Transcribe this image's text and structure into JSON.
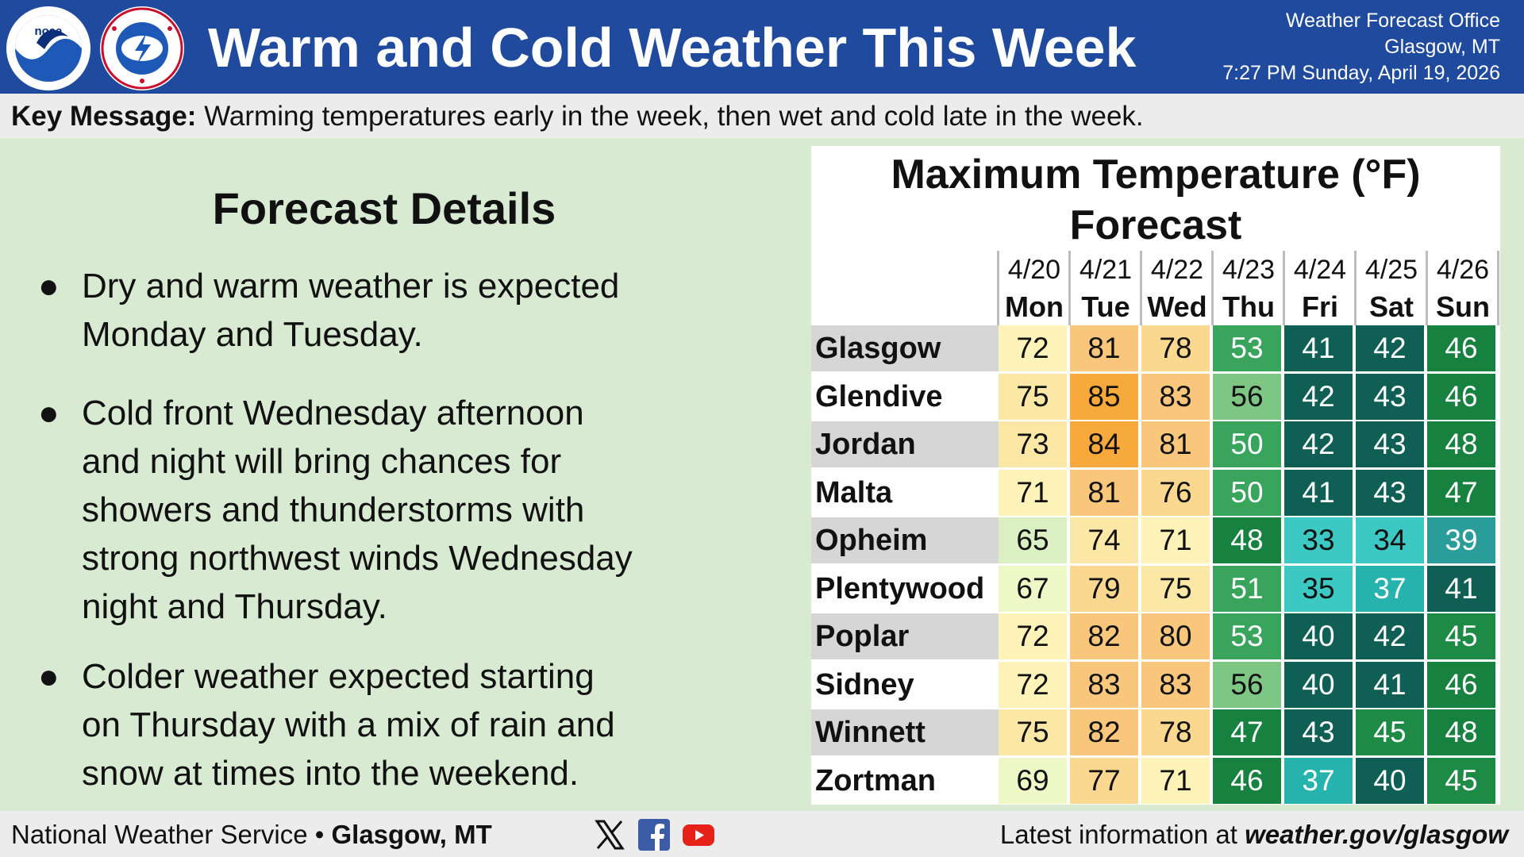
{
  "header": {
    "title": "Warm and Cold Weather This Week",
    "office_line1": "Weather Forecast Office",
    "office_line2": "Glasgow, MT",
    "timestamp": "7:27 PM Sunday, April 19, 2026",
    "background_color": "#1f4a9e",
    "logos": [
      "noaa-logo",
      "nws-logo"
    ]
  },
  "key_message": {
    "label": "Key Message:",
    "text": "Warming temperatures early in the week, then wet and cold late in the week."
  },
  "forecast_details": {
    "title": "Forecast Details",
    "bullets": [
      [
        "Dry and warm weather is expected",
        "Monday and Tuesday."
      ],
      [
        "Cold front Wednesday afternoon",
        "and night will bring chances for",
        "showers and thunderstorms with",
        "strong northwest winds Wednesday",
        "night and Thursday."
      ],
      [
        "Colder weather expected starting",
        "on Thursday with a mix of rain and",
        "snow at times into the weekend."
      ]
    ]
  },
  "temperature_table": {
    "title_line1": "Maximum Temperature (°F)",
    "title_line2": "Forecast",
    "columns": [
      {
        "date": "4/20",
        "day": "Mon"
      },
      {
        "date": "4/21",
        "day": "Tue"
      },
      {
        "date": "4/22",
        "day": "Wed"
      },
      {
        "date": "4/23",
        "day": "Thu"
      },
      {
        "date": "4/24",
        "day": "Fri"
      },
      {
        "date": "4/25",
        "day": "Sat"
      },
      {
        "date": "4/26",
        "day": "Sun"
      }
    ],
    "rows": [
      {
        "location": "Glasgow",
        "values": [
          72,
          81,
          78,
          53,
          41,
          42,
          46
        ]
      },
      {
        "location": "Glendive",
        "values": [
          75,
          85,
          83,
          56,
          42,
          43,
          46
        ]
      },
      {
        "location": "Jordan",
        "values": [
          73,
          84,
          81,
          50,
          42,
          43,
          48
        ]
      },
      {
        "location": "Malta",
        "values": [
          71,
          81,
          76,
          50,
          41,
          43,
          47
        ]
      },
      {
        "location": "Opheim",
        "values": [
          65,
          74,
          71,
          48,
          33,
          34,
          39
        ]
      },
      {
        "location": "Plentywood",
        "values": [
          67,
          79,
          75,
          51,
          35,
          37,
          41
        ]
      },
      {
        "location": "Poplar",
        "values": [
          72,
          82,
          80,
          53,
          40,
          42,
          45
        ]
      },
      {
        "location": "Sidney",
        "values": [
          72,
          83,
          83,
          56,
          40,
          41,
          46
        ]
      },
      {
        "location": "Winnett",
        "values": [
          75,
          82,
          78,
          47,
          43,
          45,
          48
        ]
      },
      {
        "location": "Zortman",
        "values": [
          69,
          77,
          71,
          46,
          37,
          40,
          45
        ]
      }
    ],
    "row_label_colors": [
      "#d6d6d6",
      "#ffffff"
    ],
    "color_scale": [
      {
        "min": 84,
        "bg": "#f7a93c",
        "fg": "#111111"
      },
      {
        "min": 80,
        "bg": "#f9c77b",
        "fg": "#111111"
      },
      {
        "min": 76,
        "bg": "#fbd88f",
        "fg": "#111111"
      },
      {
        "min": 73,
        "bg": "#fce8a6",
        "fg": "#111111"
      },
      {
        "min": 70,
        "bg": "#fdf3b8",
        "fg": "#111111"
      },
      {
        "min": 66,
        "bg": "#eef7c6",
        "fg": "#111111"
      },
      {
        "min": 63,
        "bg": "#dbf0c2",
        "fg": "#111111"
      },
      {
        "min": 55,
        "bg": "#7dc683",
        "fg": "#111111"
      },
      {
        "min": 49,
        "bg": "#39a55c",
        "fg": "#ffffff"
      },
      {
        "min": 46,
        "bg": "#17813f",
        "fg": "#ffffff"
      },
      {
        "min": 44,
        "bg": "#1d8a45",
        "fg": "#ffffff"
      },
      {
        "min": 40,
        "bg": "#0f5f55",
        "fg": "#ffffff"
      },
      {
        "min": 38,
        "bg": "#2a9d9a",
        "fg": "#ffffff"
      },
      {
        "min": 36,
        "bg": "#26b2ad",
        "fg": "#ffffff"
      },
      {
        "min": 0,
        "bg": "#3cc9c4",
        "fg": "#111111"
      }
    ]
  },
  "footer": {
    "org": "National Weather Service",
    "separator": "•",
    "office": "Glasgow, MT",
    "social_icons": [
      "x-icon",
      "facebook-icon",
      "youtube-icon"
    ],
    "latest_label": "Latest information at",
    "url": "weather.gov/glasgow"
  }
}
